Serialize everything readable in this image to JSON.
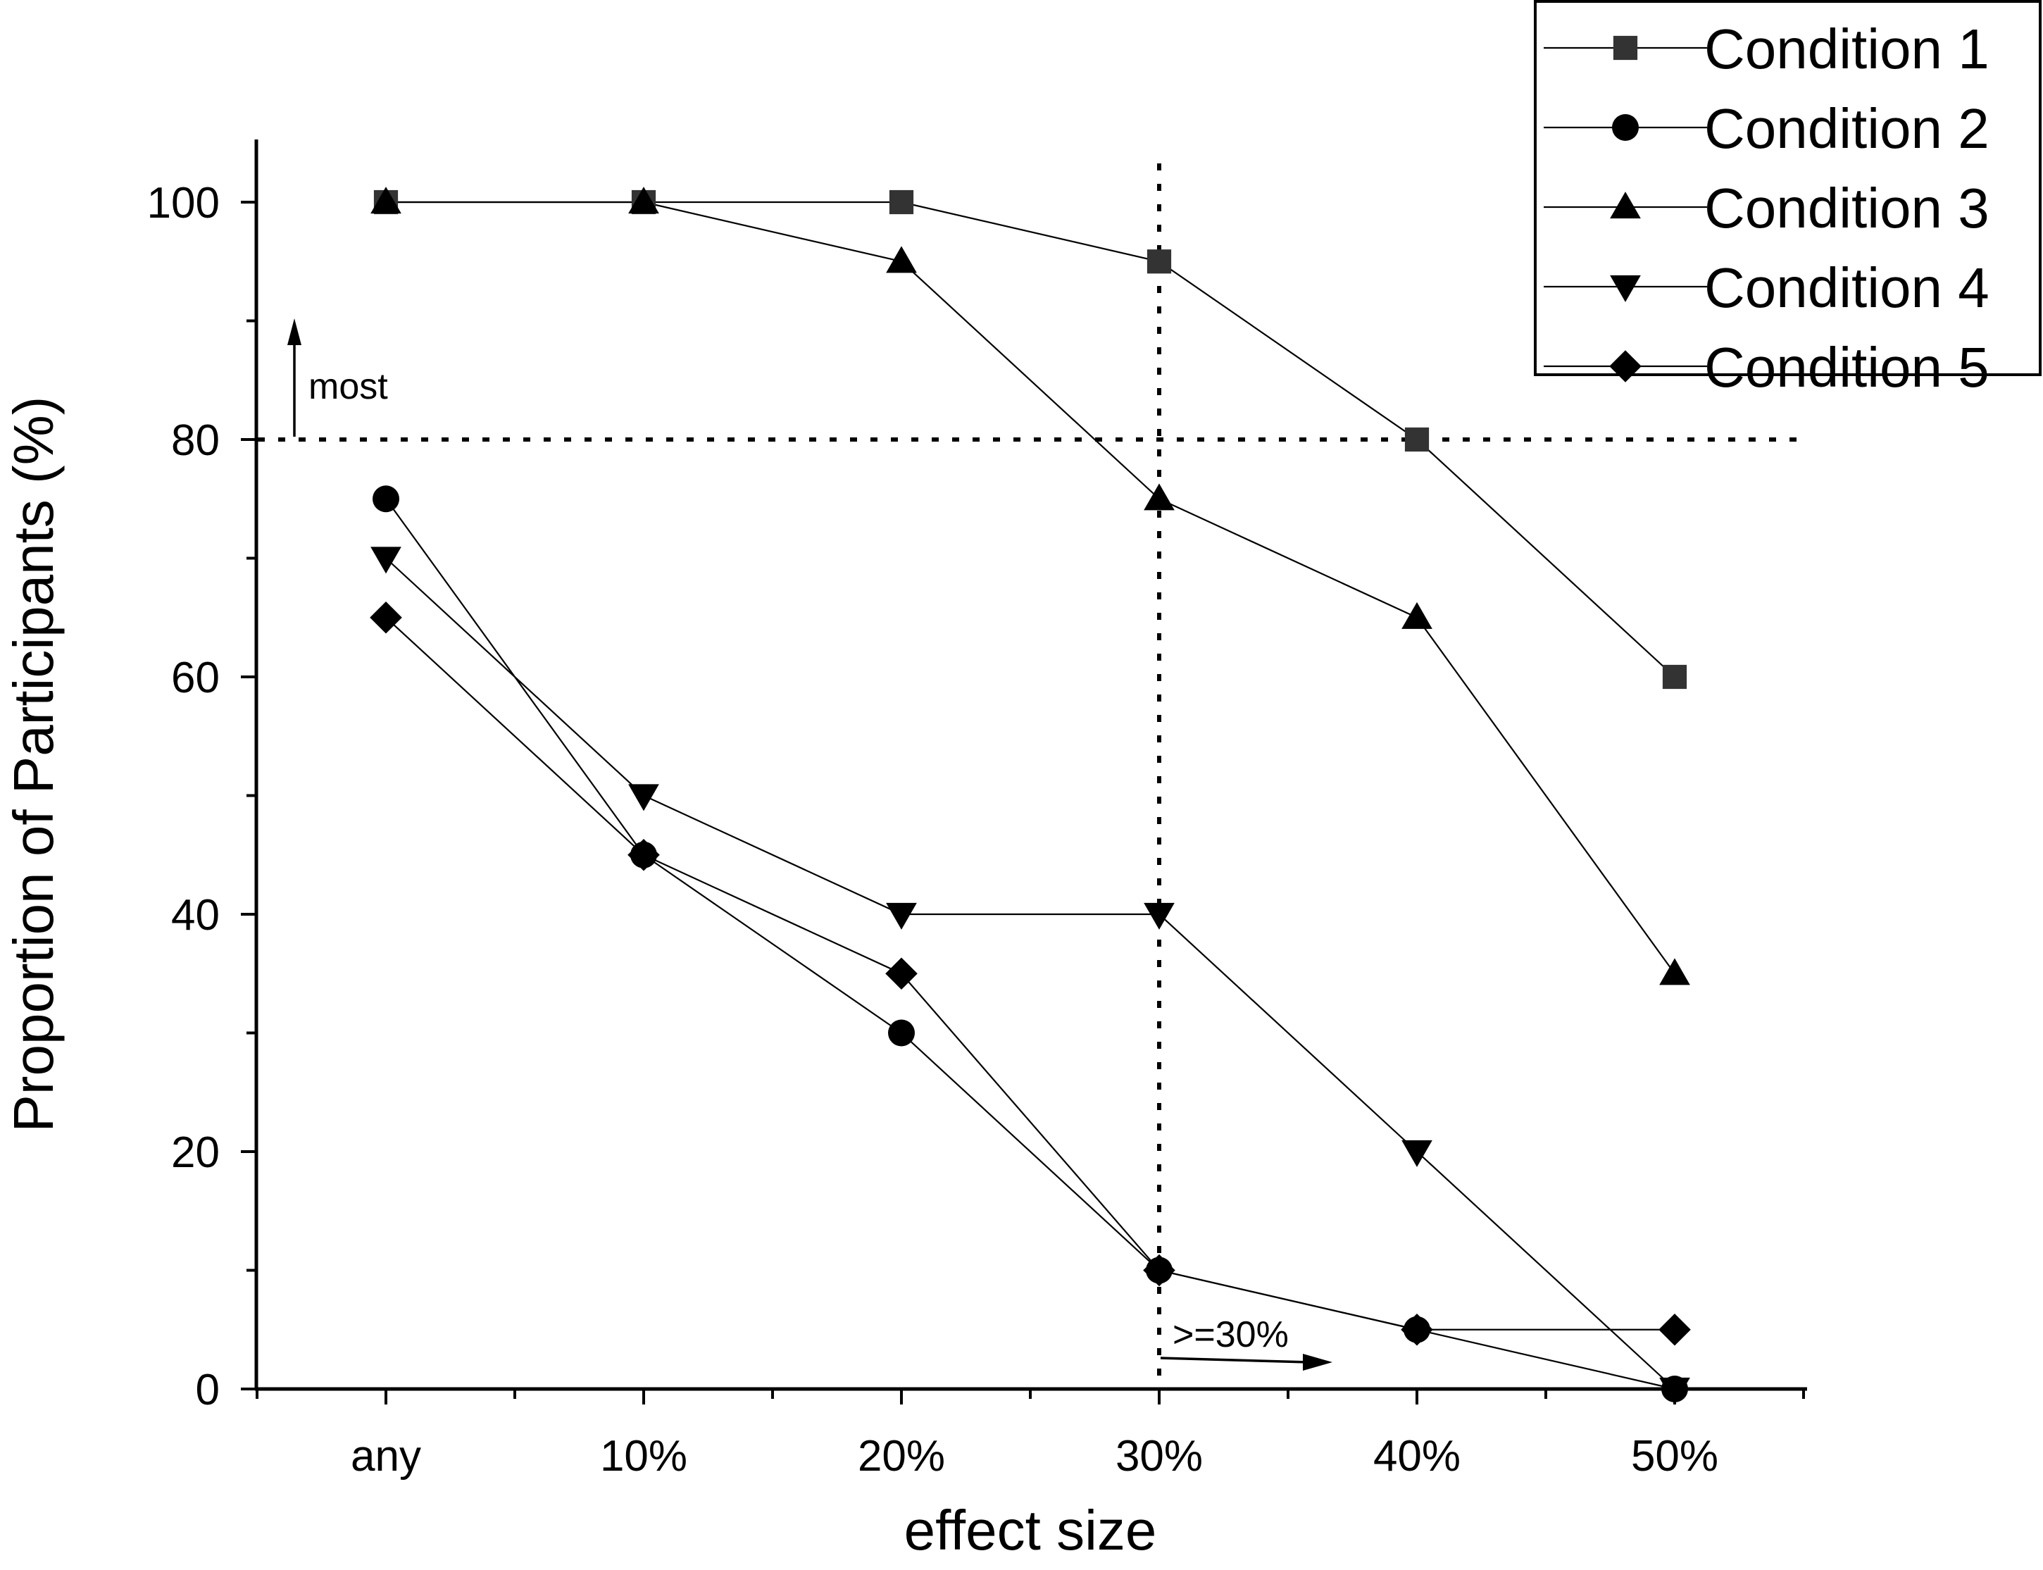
{
  "chart_data": {
    "type": "line",
    "title": "",
    "xlabel": "effect size",
    "ylabel": "Proportion of Participants (%)",
    "categories": [
      "any",
      "10%",
      "20%",
      "30%",
      "40%",
      "50%"
    ],
    "ylim": [
      0,
      105
    ],
    "yticks": [
      "0",
      "20",
      "40",
      "60",
      "80",
      "100"
    ],
    "legend_position": "top-right",
    "series": [
      {
        "name": "Condition 1",
        "marker": "square",
        "color": "#333333",
        "values": [
          100,
          100,
          100,
          95,
          80,
          60
        ]
      },
      {
        "name": "Condition 2",
        "marker": "circle",
        "color": "#000000",
        "values": [
          75,
          45,
          30,
          10,
          5,
          0
        ]
      },
      {
        "name": "Condition 3",
        "marker": "triangle-up",
        "color": "#000000",
        "values": [
          100,
          100,
          95,
          75,
          65,
          35
        ]
      },
      {
        "name": "Condition 4",
        "marker": "triangle-down",
        "color": "#000000",
        "values": [
          70,
          50,
          40,
          40,
          20,
          0
        ]
      },
      {
        "name": "Condition 5",
        "marker": "diamond",
        "color": "#000000",
        "values": [
          65,
          45,
          35,
          10,
          5,
          5
        ]
      }
    ],
    "reference_lines": {
      "horizontal": {
        "value": 80
      },
      "vertical": {
        "category_index": 3
      }
    },
    "annotations": {
      "most": {
        "text": "most",
        "at_value": 80,
        "direction": "up"
      },
      "threshold": {
        "text": ">=30%",
        "at_category_index": 3,
        "direction": "right"
      }
    }
  }
}
